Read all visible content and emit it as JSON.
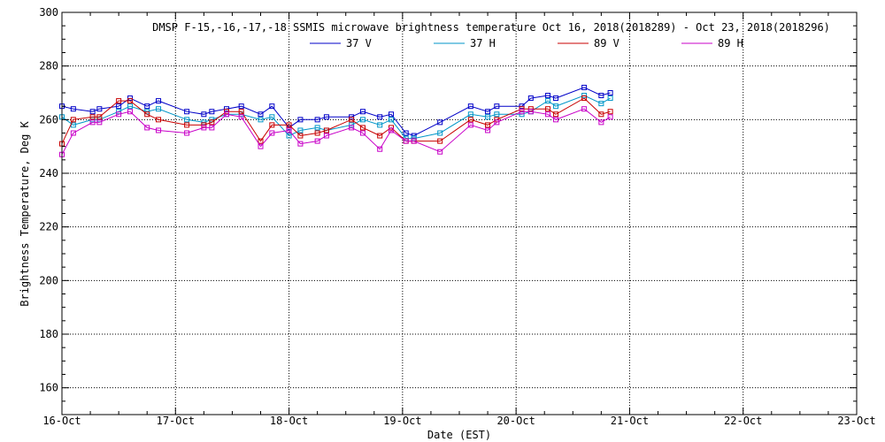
{
  "chart_data": {
    "type": "line",
    "title": "DMSP F-15,-16,-17,-18 SSMIS microwave brightness temperature Oct 16, 2018(2018289) - Oct 23, 2018(2018296)",
    "xlabel": "Date (EST)",
    "ylabel": "Brightness Temperature, Deg K",
    "xlim": [
      0,
      7
    ],
    "ylim": [
      150,
      300
    ],
    "x_tick_labels": [
      "16-Oct",
      "17-Oct",
      "18-Oct",
      "19-Oct",
      "20-Oct",
      "21-Oct",
      "22-Oct",
      "23-Oct"
    ],
    "y_ticks": [
      160,
      180,
      200,
      220,
      240,
      260,
      280,
      300
    ],
    "grid": true,
    "legend_position": "top-center",
    "series": [
      {
        "name": "37 V",
        "color": "#0000c8",
        "points": [
          [
            0.0,
            265
          ],
          [
            0.1,
            264
          ],
          [
            0.27,
            263
          ],
          [
            0.33,
            264
          ],
          [
            0.5,
            265
          ],
          [
            0.6,
            268
          ],
          [
            0.75,
            265
          ],
          [
            0.85,
            267
          ],
          [
            1.1,
            263
          ],
          [
            1.25,
            262
          ],
          [
            1.32,
            263
          ],
          [
            1.45,
            264
          ],
          [
            1.58,
            265
          ],
          [
            1.75,
            262
          ],
          [
            1.85,
            265
          ],
          [
            2.0,
            257
          ],
          [
            2.1,
            260
          ],
          [
            2.25,
            260
          ],
          [
            2.33,
            261
          ],
          [
            2.55,
            261
          ],
          [
            2.65,
            263
          ],
          [
            2.8,
            261
          ],
          [
            2.9,
            262
          ],
          [
            3.03,
            255
          ],
          [
            3.1,
            254
          ],
          [
            3.33,
            259
          ],
          [
            3.6,
            265
          ],
          [
            3.75,
            263
          ],
          [
            3.83,
            265
          ],
          [
            4.05,
            265
          ],
          [
            4.13,
            268
          ],
          [
            4.28,
            269
          ],
          [
            4.35,
            268
          ],
          [
            4.6,
            272
          ],
          [
            4.75,
            269
          ],
          [
            4.83,
            270
          ]
        ]
      },
      {
        "name": "37 H",
        "color": "#0096c8",
        "points": [
          [
            0.0,
            261
          ],
          [
            0.1,
            258
          ],
          [
            0.27,
            260
          ],
          [
            0.33,
            260
          ],
          [
            0.5,
            263
          ],
          [
            0.6,
            265
          ],
          [
            0.75,
            263
          ],
          [
            0.85,
            264
          ],
          [
            1.1,
            260
          ],
          [
            1.25,
            259
          ],
          [
            1.32,
            260
          ],
          [
            1.45,
            262
          ],
          [
            1.58,
            262
          ],
          [
            1.75,
            260
          ],
          [
            1.85,
            261
          ],
          [
            2.0,
            254
          ],
          [
            2.1,
            256
          ],
          [
            2.25,
            257
          ],
          [
            2.33,
            256
          ],
          [
            2.55,
            258
          ],
          [
            2.65,
            260
          ],
          [
            2.8,
            258
          ],
          [
            2.9,
            260
          ],
          [
            3.03,
            253
          ],
          [
            3.1,
            253
          ],
          [
            3.33,
            255
          ],
          [
            3.6,
            262
          ],
          [
            3.75,
            261
          ],
          [
            3.83,
            262
          ],
          [
            4.05,
            262
          ],
          [
            4.13,
            263
          ],
          [
            4.28,
            267
          ],
          [
            4.35,
            265
          ],
          [
            4.6,
            269
          ],
          [
            4.75,
            266
          ],
          [
            4.83,
            268
          ]
        ]
      },
      {
        "name": "89 V",
        "color": "#c80000",
        "points": [
          [
            0.0,
            251
          ],
          [
            0.1,
            260
          ],
          [
            0.27,
            261
          ],
          [
            0.33,
            261
          ],
          [
            0.5,
            267
          ],
          [
            0.6,
            267
          ],
          [
            0.75,
            262
          ],
          [
            0.85,
            260
          ],
          [
            1.1,
            258
          ],
          [
            1.25,
            258
          ],
          [
            1.32,
            259
          ],
          [
            1.45,
            263
          ],
          [
            1.58,
            263
          ],
          [
            1.75,
            252
          ],
          [
            1.85,
            258
          ],
          [
            2.0,
            258
          ],
          [
            2.1,
            254
          ],
          [
            2.25,
            255
          ],
          [
            2.33,
            256
          ],
          [
            2.55,
            260
          ],
          [
            2.65,
            257
          ],
          [
            2.8,
            254
          ],
          [
            2.9,
            257
          ],
          [
            3.03,
            252
          ],
          [
            3.1,
            252
          ],
          [
            3.33,
            252
          ],
          [
            3.6,
            260
          ],
          [
            3.75,
            258
          ],
          [
            3.83,
            260
          ],
          [
            4.05,
            264
          ],
          [
            4.13,
            264
          ],
          [
            4.28,
            264
          ],
          [
            4.35,
            262
          ],
          [
            4.6,
            268
          ],
          [
            4.75,
            262
          ],
          [
            4.83,
            263
          ]
        ]
      },
      {
        "name": "89 H",
        "color": "#c800c8",
        "points": [
          [
            0.0,
            247
          ],
          [
            0.1,
            255
          ],
          [
            0.27,
            259
          ],
          [
            0.33,
            259
          ],
          [
            0.5,
            262
          ],
          [
            0.6,
            263
          ],
          [
            0.75,
            257
          ],
          [
            0.85,
            256
          ],
          [
            1.1,
            255
          ],
          [
            1.25,
            257
          ],
          [
            1.32,
            257
          ],
          [
            1.45,
            262
          ],
          [
            1.58,
            261
          ],
          [
            1.75,
            250
          ],
          [
            1.85,
            255
          ],
          [
            2.0,
            256
          ],
          [
            2.1,
            251
          ],
          [
            2.25,
            252
          ],
          [
            2.33,
            254
          ],
          [
            2.55,
            257
          ],
          [
            2.65,
            255
          ],
          [
            2.8,
            249
          ],
          [
            2.9,
            256
          ],
          [
            3.03,
            252
          ],
          [
            3.1,
            252
          ],
          [
            3.33,
            248
          ],
          [
            3.6,
            258
          ],
          [
            3.75,
            256
          ],
          [
            3.83,
            259
          ],
          [
            4.05,
            263
          ],
          [
            4.13,
            263
          ],
          [
            4.28,
            262
          ],
          [
            4.35,
            260
          ],
          [
            4.6,
            264
          ],
          [
            4.75,
            259
          ],
          [
            4.83,
            261
          ]
        ]
      }
    ]
  }
}
